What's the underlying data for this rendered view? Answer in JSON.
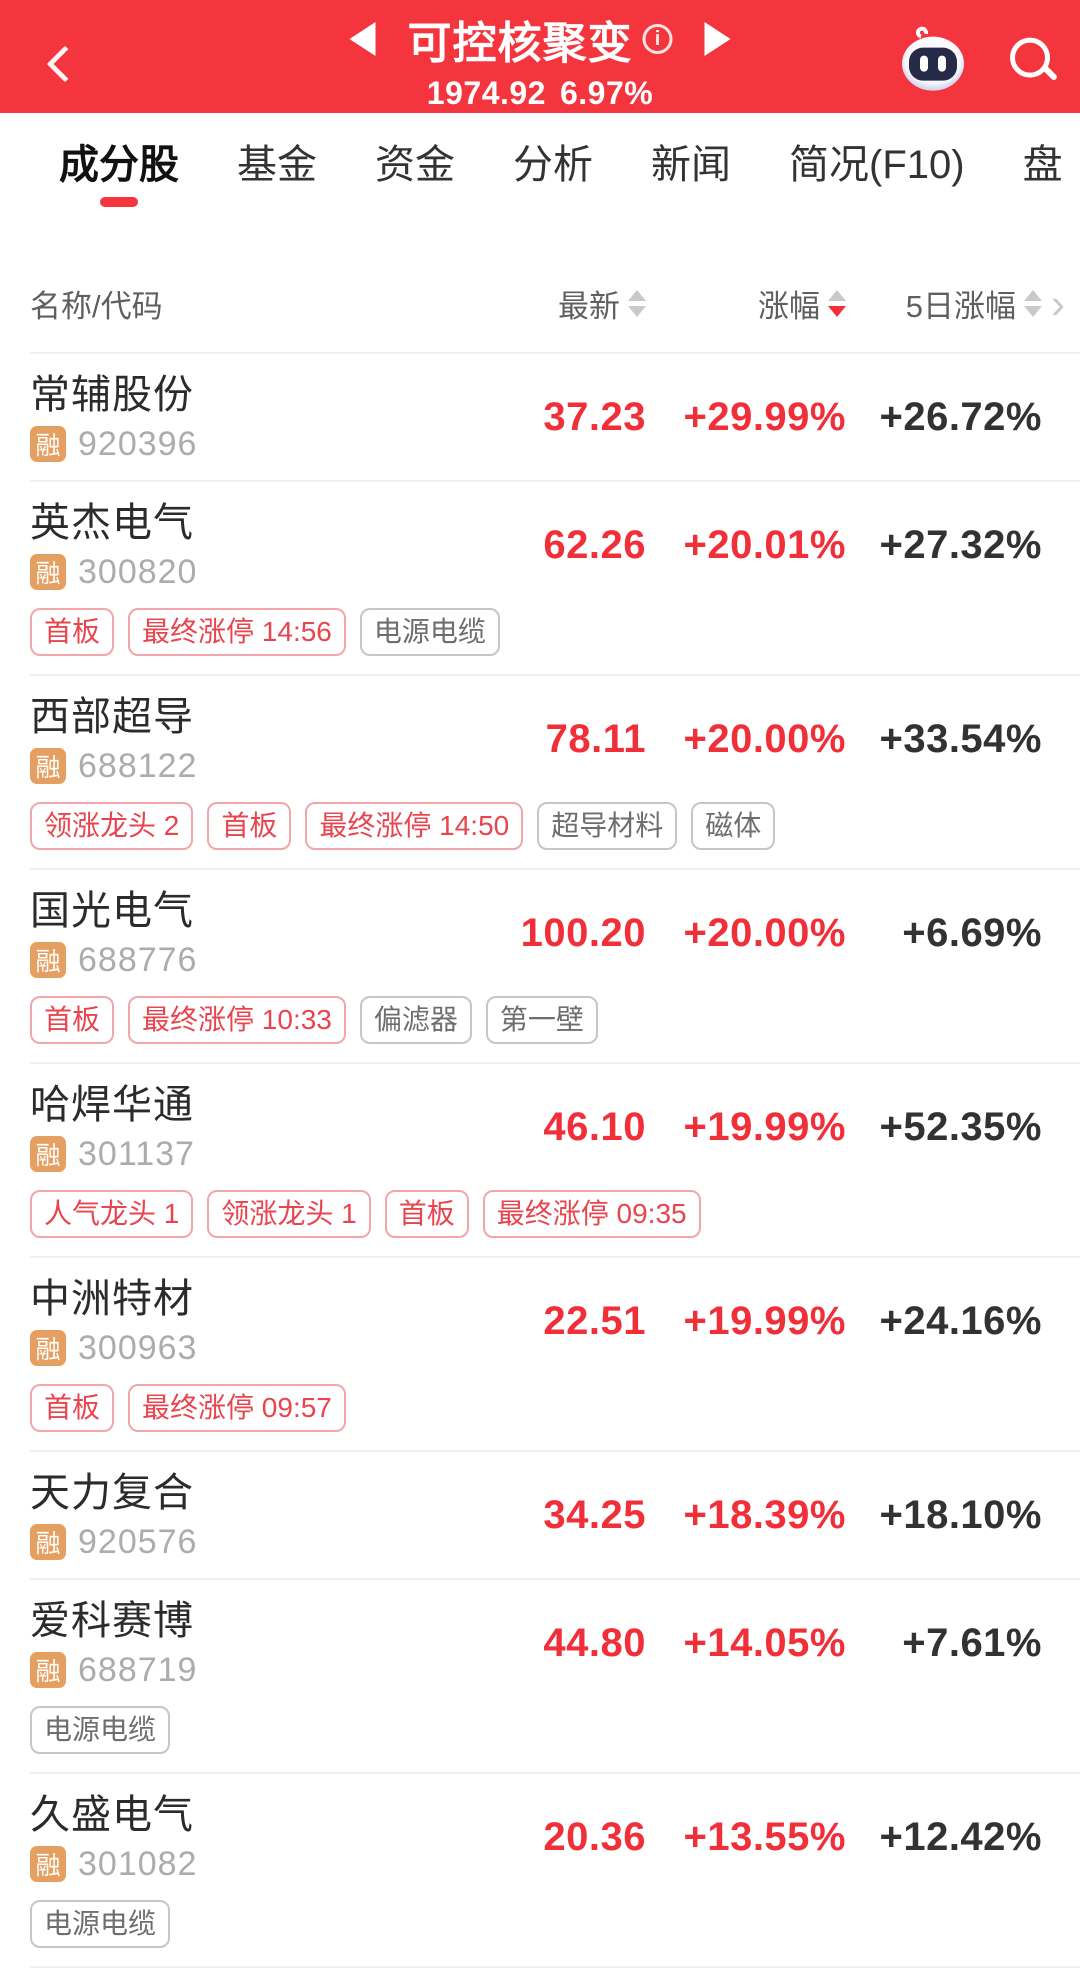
{
  "colors": {
    "header_bg": "#F4353E",
    "price_red": "#F12F39",
    "badge_orange": "#E5A061",
    "tag_red": "#E8454E",
    "tag_gray": "#6E6E6E"
  },
  "header": {
    "title": "可控核聚变",
    "info_glyph": "i",
    "index_value": "1974.92",
    "index_change": "6.97%"
  },
  "tabs": [
    {
      "key": "components",
      "label": "成分股",
      "active": true
    },
    {
      "key": "funds",
      "label": "基金",
      "active": false
    },
    {
      "key": "capital",
      "label": "资金",
      "active": false
    },
    {
      "key": "analysis",
      "label": "分析",
      "active": false
    },
    {
      "key": "news",
      "label": "新闻",
      "active": false
    },
    {
      "key": "profile-f10",
      "label": "简况(F10)",
      "active": false
    },
    {
      "key": "order-book",
      "label": "盘",
      "active": false
    }
  ],
  "table": {
    "columns": [
      {
        "label": "名称/代码",
        "sort": null
      },
      {
        "label": "最新",
        "sort": "none"
      },
      {
        "label": "涨幅",
        "sort": "desc"
      },
      {
        "label": "5日涨幅",
        "sort": "none"
      }
    ],
    "more_icon": "›",
    "rows": [
      {
        "name": "常辅股份",
        "badge": "融",
        "code": "920396",
        "last": "37.23",
        "change": "+29.99%",
        "change_5d": "+26.72%",
        "tags": []
      },
      {
        "name": "英杰电气",
        "badge": "融",
        "code": "300820",
        "last": "62.26",
        "change": "+20.01%",
        "change_5d": "+27.32%",
        "tags": [
          {
            "text": "首板",
            "style": "red"
          },
          {
            "text": "最终涨停 14:56",
            "style": "red"
          },
          {
            "text": "电源电缆",
            "style": "gray"
          }
        ]
      },
      {
        "name": "西部超导",
        "badge": "融",
        "code": "688122",
        "last": "78.11",
        "change": "+20.00%",
        "change_5d": "+33.54%",
        "tags": [
          {
            "text": "领涨龙头 2",
            "style": "red"
          },
          {
            "text": "首板",
            "style": "red"
          },
          {
            "text": "最终涨停 14:50",
            "style": "red"
          },
          {
            "text": "超导材料",
            "style": "gray"
          },
          {
            "text": "磁体",
            "style": "gray"
          }
        ]
      },
      {
        "name": "国光电气",
        "badge": "融",
        "code": "688776",
        "last": "100.20",
        "change": "+20.00%",
        "change_5d": "+6.69%",
        "tags": [
          {
            "text": "首板",
            "style": "red"
          },
          {
            "text": "最终涨停 10:33",
            "style": "red"
          },
          {
            "text": "偏滤器",
            "style": "gray"
          },
          {
            "text": "第一壁",
            "style": "gray"
          }
        ]
      },
      {
        "name": "哈焊华通",
        "badge": "融",
        "code": "301137",
        "last": "46.10",
        "change": "+19.99%",
        "change_5d": "+52.35%",
        "tags": [
          {
            "text": "人气龙头 1",
            "style": "red"
          },
          {
            "text": "领涨龙头 1",
            "style": "red"
          },
          {
            "text": "首板",
            "style": "red"
          },
          {
            "text": "最终涨停 09:35",
            "style": "red"
          }
        ]
      },
      {
        "name": "中洲特材",
        "badge": "融",
        "code": "300963",
        "last": "22.51",
        "change": "+19.99%",
        "change_5d": "+24.16%",
        "tags": [
          {
            "text": "首板",
            "style": "red"
          },
          {
            "text": "最终涨停 09:57",
            "style": "red"
          }
        ]
      },
      {
        "name": "天力复合",
        "badge": "融",
        "code": "920576",
        "last": "34.25",
        "change": "+18.39%",
        "change_5d": "+18.10%",
        "tags": []
      },
      {
        "name": "爱科赛博",
        "badge": "融",
        "code": "688719",
        "last": "44.80",
        "change": "+14.05%",
        "change_5d": "+7.61%",
        "tags": [
          {
            "text": "电源电缆",
            "style": "gray"
          }
        ]
      },
      {
        "name": "久盛电气",
        "badge": "融",
        "code": "301082",
        "last": "20.36",
        "change": "+13.55%",
        "change_5d": "+12.42%",
        "tags": [
          {
            "text": "电源电缆",
            "style": "gray"
          }
        ]
      }
    ]
  }
}
